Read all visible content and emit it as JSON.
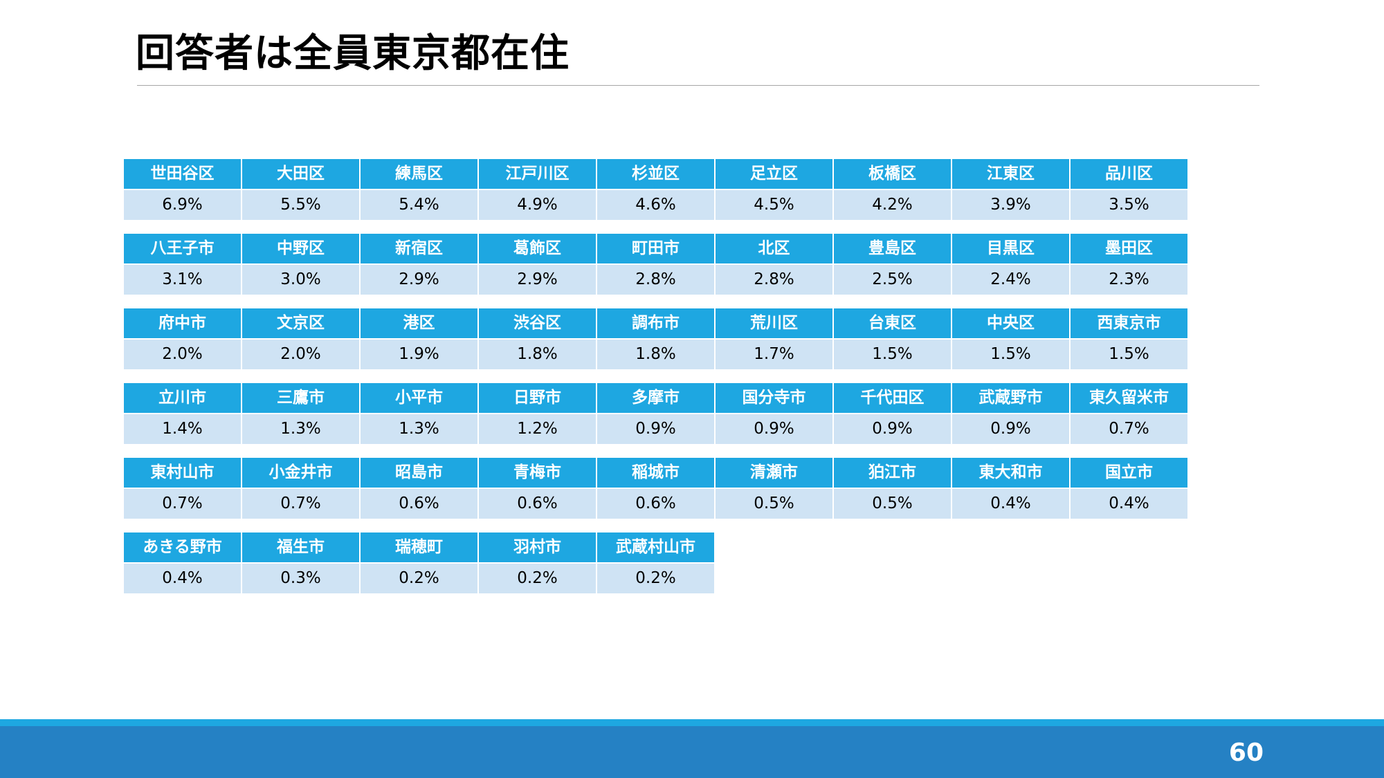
{
  "title": "回答者は全員東京都在住",
  "page_number": "60",
  "rows": [
    {
      "names": [
        "世田谷区",
        "大田区",
        "練馬区",
        "江戸川区",
        "杉並区",
        "足立区",
        "板橋区",
        "江東区",
        "品川区"
      ],
      "values": [
        "6.9%",
        "5.5%",
        "5.4%",
        "4.9%",
        "4.6%",
        "4.5%",
        "4.2%",
        "3.9%",
        "3.5%"
      ]
    },
    {
      "names": [
        "八王子市",
        "中野区",
        "新宿区",
        "葛飾区",
        "町田市",
        "北区",
        "豊島区",
        "目黒区",
        "墨田区"
      ],
      "values": [
        "3.1%",
        "3.0%",
        "2.9%",
        "2.9%",
        "2.8%",
        "2.8%",
        "2.5%",
        "2.4%",
        "2.3%"
      ]
    },
    {
      "names": [
        "府中市",
        "文京区",
        "港区",
        "渋谷区",
        "調布市",
        "荒川区",
        "台東区",
        "中央区",
        "西東京市"
      ],
      "values": [
        "2.0%",
        "2.0%",
        "1.9%",
        "1.8%",
        "1.8%",
        "1.7%",
        "1.5%",
        "1.5%",
        "1.5%"
      ]
    },
    {
      "names": [
        "立川市",
        "三鷹市",
        "小平市",
        "日野市",
        "多摩市",
        "国分寺市",
        "千代田区",
        "武蔵野市",
        "東久留米市"
      ],
      "values": [
        "1.4%",
        "1.3%",
        "1.3%",
        "1.2%",
        "0.9%",
        "0.9%",
        "0.9%",
        "0.9%",
        "0.7%"
      ]
    },
    {
      "names": [
        "東村山市",
        "小金井市",
        "昭島市",
        "青梅市",
        "稲城市",
        "清瀬市",
        "狛江市",
        "東大和市",
        "国立市"
      ],
      "values": [
        "0.7%",
        "0.7%",
        "0.6%",
        "0.6%",
        "0.6%",
        "0.5%",
        "0.5%",
        "0.4%",
        "0.4%"
      ]
    },
    {
      "names": [
        "あきる野市",
        "福生市",
        "瑞穂町",
        "羽村市",
        "武蔵村山市"
      ],
      "values": [
        "0.4%",
        "0.3%",
        "0.2%",
        "0.2%",
        "0.2%"
      ]
    }
  ]
}
